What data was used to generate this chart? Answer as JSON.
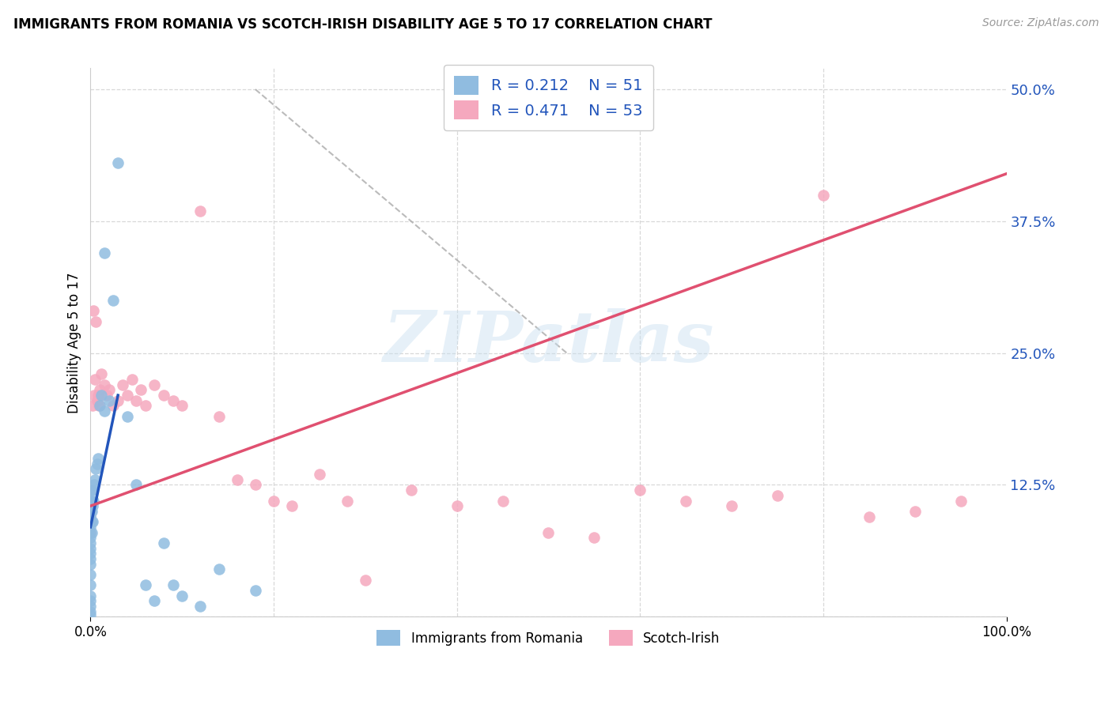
{
  "title": "IMMIGRANTS FROM ROMANIA VS SCOTCH-IRISH DISABILITY AGE 5 TO 17 CORRELATION CHART",
  "source": "Source: ZipAtlas.com",
  "ylabel": "Disability Age 5 to 17",
  "ytick_values": [
    0.0,
    12.5,
    25.0,
    37.5,
    50.0
  ],
  "ytick_labels": [
    "",
    "12.5%",
    "25.0%",
    "37.5%",
    "50.0%"
  ],
  "xtick_values": [
    0,
    100
  ],
  "xtick_labels": [
    "0.0%",
    "100.0%"
  ],
  "xlim": [
    0,
    100
  ],
  "ylim": [
    0,
    52
  ],
  "watermark": "ZIPatlas",
  "legend_r1": "R = 0.212",
  "legend_n1": "N = 51",
  "legend_r2": "R = 0.471",
  "legend_n2": "N = 53",
  "color_blue": "#90bce0",
  "color_pink": "#f5a8be",
  "line_color_blue": "#2255bb",
  "line_color_pink": "#e05070",
  "grid_color": "#d8d8d8",
  "background_color": "#ffffff",
  "romania_x": [
    0.0,
    0.0,
    0.0,
    0.0,
    0.0,
    0.0,
    0.0,
    0.0,
    0.0,
    0.0,
    0.0,
    0.0,
    0.0,
    0.0,
    0.0,
    0.0,
    0.0,
    0.0,
    0.0,
    0.0,
    0.1,
    0.1,
    0.1,
    0.1,
    0.1,
    0.2,
    0.2,
    0.2,
    0.3,
    0.4,
    0.5,
    0.6,
    0.7,
    0.8,
    1.0,
    1.2,
    1.5,
    1.5,
    2.0,
    2.5,
    3.0,
    4.0,
    5.0,
    6.0,
    7.0,
    8.0,
    9.0,
    10.0,
    12.0,
    14.0,
    18.0
  ],
  "romania_y": [
    2.0,
    3.0,
    4.0,
    5.0,
    5.5,
    6.0,
    6.5,
    7.0,
    7.5,
    8.0,
    8.5,
    9.0,
    9.5,
    10.0,
    10.5,
    11.0,
    1.5,
    1.0,
    0.5,
    0.2,
    8.0,
    9.0,
    10.0,
    11.0,
    12.0,
    9.0,
    10.5,
    12.0,
    11.0,
    12.5,
    13.0,
    14.0,
    14.5,
    15.0,
    20.0,
    21.0,
    19.5,
    34.5,
    20.5,
    30.0,
    43.0,
    19.0,
    12.5,
    3.0,
    1.5,
    7.0,
    3.0,
    2.0,
    1.0,
    4.5,
    2.5
  ],
  "scotch_x": [
    0.0,
    0.0,
    0.0,
    0.0,
    0.0,
    0.0,
    0.2,
    0.3,
    0.4,
    0.5,
    0.6,
    0.7,
    0.8,
    0.9,
    1.0,
    1.2,
    1.5,
    1.8,
    2.0,
    2.5,
    3.0,
    3.5,
    4.0,
    4.5,
    5.0,
    5.5,
    6.0,
    7.0,
    8.0,
    9.0,
    10.0,
    12.0,
    14.0,
    16.0,
    18.0,
    20.0,
    22.0,
    25.0,
    28.0,
    30.0,
    35.0,
    40.0,
    45.0,
    50.0,
    55.0,
    60.0,
    65.0,
    70.0,
    75.0,
    80.0,
    85.0,
    90.0,
    95.0
  ],
  "scotch_y": [
    9.0,
    10.0,
    11.0,
    12.0,
    8.0,
    9.5,
    20.0,
    29.0,
    21.0,
    22.5,
    28.0,
    20.5,
    21.0,
    20.0,
    21.5,
    23.0,
    22.0,
    21.0,
    21.5,
    20.0,
    20.5,
    22.0,
    21.0,
    22.5,
    20.5,
    21.5,
    20.0,
    22.0,
    21.0,
    20.5,
    20.0,
    38.5,
    19.0,
    13.0,
    12.5,
    11.0,
    10.5,
    13.5,
    11.0,
    3.5,
    12.0,
    10.5,
    11.0,
    8.0,
    7.5,
    12.0,
    11.0,
    10.5,
    11.5,
    40.0,
    9.5,
    10.0,
    11.0
  ],
  "reg_blue_x0": 0.0,
  "reg_blue_x1": 3.0,
  "reg_blue_y0": 8.5,
  "reg_blue_y1": 21.0,
  "reg_pink_x0": 0.0,
  "reg_pink_x1": 100.0,
  "reg_pink_y0": 10.5,
  "reg_pink_y1": 42.0,
  "dash_x0": 18.0,
  "dash_y0": 50.0,
  "dash_x1": 52.0,
  "dash_y1": 25.0
}
